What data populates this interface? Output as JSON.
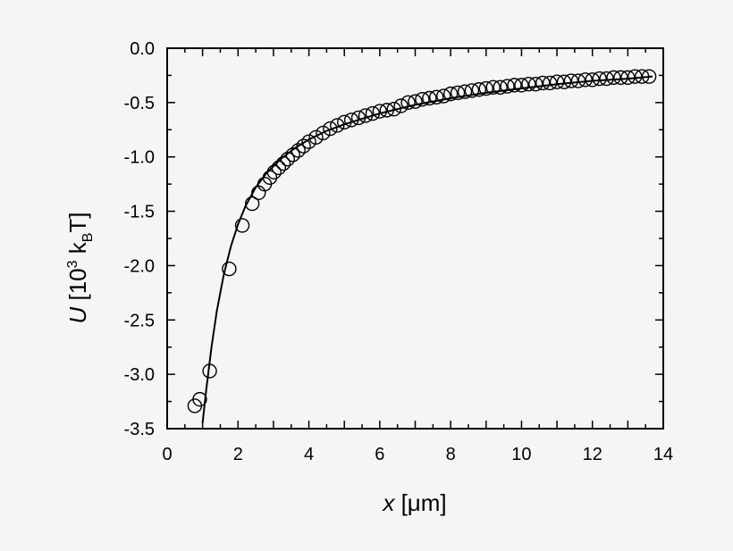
{
  "chart_data": {
    "type": "scatter",
    "xlabel": {
      "var": "x",
      "unit": " [μm]"
    },
    "ylabel": {
      "var": "U",
      "pre": " [10",
      "sup": "3",
      "mid": " k",
      "sub": "B",
      "post": "T]"
    },
    "xlim": [
      0,
      14
    ],
    "ylim": [
      -3.5,
      0.0
    ],
    "xticks": [
      0,
      2,
      4,
      6,
      8,
      10,
      12,
      14
    ],
    "yticks": [
      "0.0",
      "-0.5",
      "-1.0",
      "-1.5",
      "-2.0",
      "-2.5",
      "-3.0",
      "-3.5"
    ],
    "grid": false,
    "series": [
      {
        "marker": "open-circle",
        "x": [
          0.78,
          0.92,
          1.2,
          1.75,
          2.12,
          2.4,
          2.58,
          2.75,
          2.9,
          3.02,
          3.15,
          3.28,
          3.4,
          3.55,
          3.7,
          3.85,
          4.0,
          4.2,
          4.4,
          4.6,
          4.8,
          5.0,
          5.2,
          5.4,
          5.6,
          5.8,
          6.0,
          6.2,
          6.4,
          6.6,
          6.8,
          7.0,
          7.2,
          7.4,
          7.6,
          7.8,
          8.0,
          8.2,
          8.4,
          8.6,
          8.8,
          9.0,
          9.2,
          9.4,
          9.6,
          9.8,
          10.0,
          10.2,
          10.4,
          10.6,
          10.8,
          11.0,
          11.2,
          11.4,
          11.6,
          11.8,
          12.0,
          12.2,
          12.4,
          12.6,
          12.8,
          13.0,
          13.2,
          13.4,
          13.6
        ],
        "y": [
          -3.29,
          -3.23,
          -2.97,
          -2.03,
          -1.63,
          -1.43,
          -1.33,
          -1.25,
          -1.19,
          -1.14,
          -1.1,
          -1.06,
          -1.02,
          -0.98,
          -0.94,
          -0.9,
          -0.86,
          -0.82,
          -0.78,
          -0.74,
          -0.71,
          -0.68,
          -0.66,
          -0.64,
          -0.62,
          -0.6,
          -0.58,
          -0.57,
          -0.56,
          -0.53,
          -0.5,
          -0.49,
          -0.47,
          -0.46,
          -0.45,
          -0.44,
          -0.42,
          -0.41,
          -0.4,
          -0.39,
          -0.38,
          -0.37,
          -0.36,
          -0.36,
          -0.35,
          -0.34,
          -0.34,
          -0.33,
          -0.33,
          -0.32,
          -0.32,
          -0.31,
          -0.31,
          -0.3,
          -0.3,
          -0.29,
          -0.29,
          -0.28,
          -0.28,
          -0.27,
          -0.27,
          -0.27,
          -0.26,
          -0.26,
          -0.26
        ]
      },
      {
        "line": "solid",
        "x": [
          1.0,
          1.1,
          1.25,
          1.4,
          1.6,
          1.8,
          2.0,
          2.2,
          2.5,
          2.8,
          3.2,
          3.6,
          4.0,
          4.5,
          5.0,
          5.5,
          6.0,
          7.0,
          8.0,
          9.0,
          10.0,
          11.0,
          12.0,
          13.0,
          13.7
        ],
        "y": [
          -3.45,
          -3.15,
          -2.75,
          -2.42,
          -2.08,
          -1.82,
          -1.62,
          -1.46,
          -1.28,
          -1.15,
          -1.02,
          -0.92,
          -0.84,
          -0.76,
          -0.7,
          -0.65,
          -0.6,
          -0.52,
          -0.46,
          -0.41,
          -0.37,
          -0.33,
          -0.3,
          -0.28,
          -0.26
        ]
      }
    ]
  }
}
